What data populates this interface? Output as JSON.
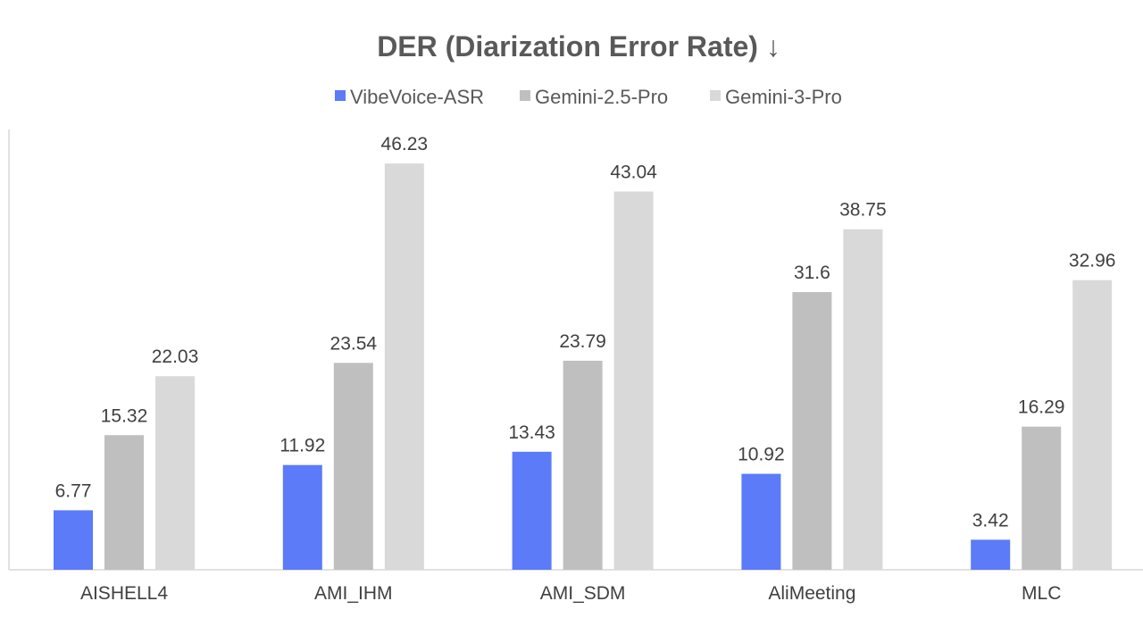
{
  "chart_data": {
    "type": "bar",
    "title": "DER (Diarization Error Rate) ↓",
    "xlabel": "",
    "ylabel": "",
    "ylim": [
      0,
      50
    ],
    "grid": false,
    "legend_position": "top",
    "categories": [
      "AISHELL4",
      "AMI_IHM",
      "AMI_SDM",
      "AliMeeting",
      "MLC"
    ],
    "series": [
      {
        "name": "VibeVoice-ASR",
        "color": "#5b7bf8",
        "values": [
          6.77,
          11.92,
          13.43,
          10.92,
          3.42
        ]
      },
      {
        "name": "Gemini-2.5-Pro",
        "color": "#bfbfbf",
        "values": [
          15.32,
          23.54,
          23.79,
          31.6,
          16.29
        ]
      },
      {
        "name": "Gemini-3-Pro",
        "color": "#d9d9d9",
        "values": [
          22.03,
          46.23,
          43.04,
          38.75,
          32.96
        ]
      }
    ]
  }
}
